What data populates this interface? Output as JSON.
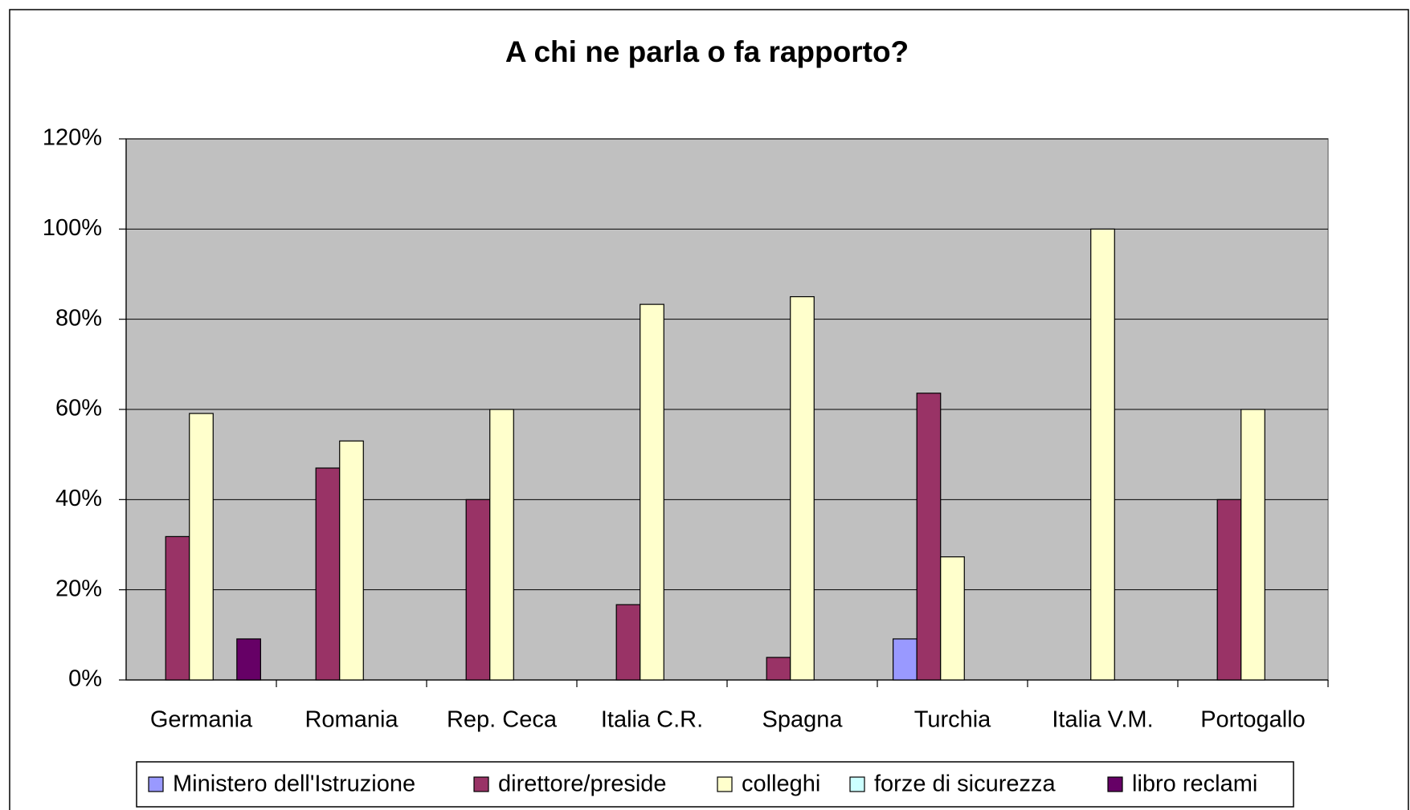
{
  "chart_data": {
    "type": "bar",
    "title": "A chi ne parla o fa rapporto?",
    "categories": [
      "Germania",
      "Romania",
      "Rep. Ceca",
      "Italia C.R.",
      "Spagna",
      "Turchia",
      "Italia V.M.",
      "Portogallo"
    ],
    "series": [
      {
        "name": "Ministero dell'Istruzione",
        "color": "#9999ff",
        "values": [
          0,
          0,
          0,
          0,
          0,
          9.1,
          0,
          0
        ]
      },
      {
        "name": "direttore/preside",
        "color": "#993366",
        "values": [
          31.8,
          47,
          40,
          16.7,
          5,
          63.6,
          0,
          40
        ]
      },
      {
        "name": "colleghi",
        "color": "#ffffcc",
        "values": [
          59.1,
          53,
          60,
          83.3,
          85,
          27.3,
          100,
          60
        ]
      },
      {
        "name": "forze di sicurezza",
        "color": "#ccffff",
        "values": [
          0,
          0,
          0,
          0,
          0,
          0,
          0,
          0
        ]
      },
      {
        "name": "libro reclami",
        "color": "#660066",
        "values": [
          9.1,
          0,
          0,
          0,
          0,
          0,
          0,
          0
        ]
      }
    ],
    "ylim": [
      0,
      120
    ],
    "yticks": [
      {
        "value": 0,
        "label": "0%"
      },
      {
        "value": 20,
        "label": "20%"
      },
      {
        "value": 40,
        "label": "40%"
      },
      {
        "value": 60,
        "label": "60%"
      },
      {
        "value": 80,
        "label": "80%"
      },
      {
        "value": 100,
        "label": "100%"
      },
      {
        "value": 120,
        "label": "120%"
      }
    ],
    "grid": true,
    "legend": "bottom",
    "plot_background": "#c0c0c0"
  }
}
